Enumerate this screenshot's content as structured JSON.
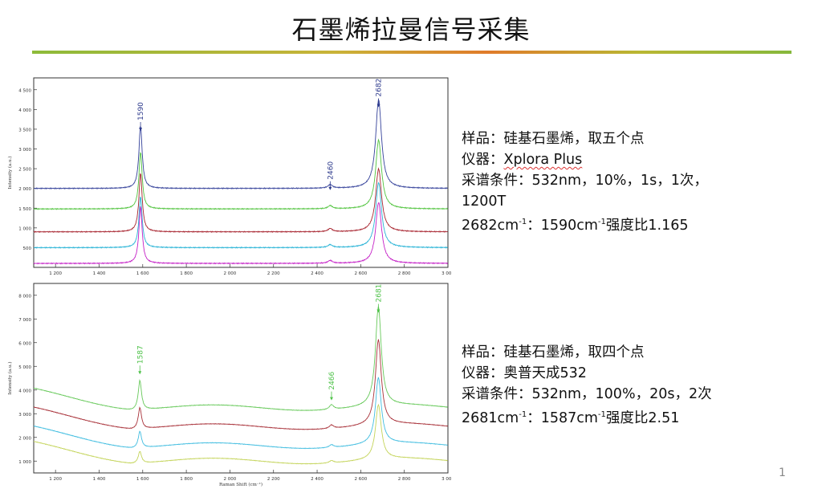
{
  "title": "石墨烯拉曼信号采集",
  "page_number": "1",
  "top_info": {
    "sample": "样品：硅基石墨烯，取五个点",
    "instrument_label": "仪器：",
    "instrument_name": "Xplora Plus",
    "conditions": "采谱条件：532nm，10%，1s，1次，",
    "conditions_2": "1200T",
    "ratio_a": "2682cm",
    "ratio_sup_a": "-1",
    "ratio_b": "：1590cm",
    "ratio_sup_b": "-1",
    "ratio_c": "强度比1.165"
  },
  "bottom_info": {
    "sample": "样品：硅基石墨烯，取四个点",
    "instrument": "仪器：奥普天成532",
    "conditions": "采谱条件：532nm，100%，20s，2次",
    "ratio_a": "2681cm",
    "ratio_sup_a": "-1",
    "ratio_b": "：1587cm",
    "ratio_sup_b": "-1",
    "ratio_c": "强度比2.51"
  },
  "chart_data": [
    {
      "type": "line",
      "title": "",
      "xlabel": "",
      "ylabel": "Intensity (a.u.)",
      "xlim": [
        1100,
        3000
      ],
      "ylim": [
        0,
        4800
      ],
      "x_ticks": [
        "1 200",
        "1 400",
        "1 600",
        "1 800",
        "2 000",
        "2 200",
        "2 400",
        "2 600",
        "2 800",
        "3 000"
      ],
      "y_ticks": [
        "4 500",
        "4 000",
        "3 500",
        "3 000",
        "2 500",
        "2 000",
        "1 500",
        "1 000",
        "500"
      ],
      "annotations": [
        {
          "text": "1590",
          "x": 1590,
          "y": 3600,
          "color": "#2d3a8c"
        },
        {
          "text": "2460",
          "x": 2460,
          "y": 2100,
          "color": "#2d3a8c"
        },
        {
          "text": "2682",
          "x": 2682,
          "y": 4200,
          "color": "#2d3a8c"
        }
      ],
      "series": [
        {
          "color": "#34419a",
          "baseline": 2000,
          "g_pos": 1590,
          "g_height": 1600,
          "d_pos": 2460,
          "d_height": 90,
          "p2d_pos": 2682,
          "p2d_height": 2250
        },
        {
          "color": "#52c43f",
          "baseline": 1480,
          "g_pos": 1590,
          "g_height": 1450,
          "d_pos": 2460,
          "d_height": 80,
          "p2d_pos": 2682,
          "p2d_height": 1750
        },
        {
          "color": "#a82530",
          "baseline": 900,
          "g_pos": 1590,
          "g_height": 1500,
          "d_pos": 2460,
          "d_height": 80,
          "p2d_pos": 2682,
          "p2d_height": 1600
        },
        {
          "color": "#27b3d6",
          "baseline": 500,
          "g_pos": 1590,
          "g_height": 1300,
          "d_pos": 2460,
          "d_height": 70,
          "p2d_pos": 2682,
          "p2d_height": 1650
        },
        {
          "color": "#c41fc6",
          "baseline": 100,
          "g_pos": 1590,
          "g_height": 1450,
          "d_pos": 2460,
          "d_height": 70,
          "p2d_pos": 2682,
          "p2d_height": 1550
        }
      ]
    },
    {
      "type": "line",
      "title": "",
      "xlabel": "Raman Shift (cm⁻¹)",
      "ylabel": "Intensity (a.u.)",
      "xlim": [
        1100,
        3000
      ],
      "ylim": [
        500,
        8500
      ],
      "x_ticks": [
        "1 200",
        "1 400",
        "1 600",
        "1 800",
        "2 000",
        "2 200",
        "2 400",
        "2 600",
        "2 800",
        "3 000"
      ],
      "y_ticks": [
        "8 000",
        "7 000",
        "6 000",
        "5 000",
        "4 000",
        "3 000",
        "2 000",
        "1 000"
      ],
      "annotations": [
        {
          "text": "1587",
          "x": 1587,
          "y": 4900,
          "color": "#4fc24a"
        },
        {
          "text": "2466",
          "x": 2466,
          "y": 3800,
          "color": "#4fc24a"
        },
        {
          "text": "2681",
          "x": 2681,
          "y": 7500,
          "color": "#4fc24a"
        }
      ],
      "series": [
        {
          "color": "#67c95a",
          "baseline": 3250,
          "g_pos": 1587,
          "g_height": 1250,
          "d_pos": 2466,
          "d_height": 200,
          "p2d_pos": 2681,
          "p2d_height": 4200
        },
        {
          "color": "#a83038",
          "baseline": 2450,
          "g_pos": 1587,
          "g_height": 900,
          "d_pos": 2466,
          "d_height": 150,
          "p2d_pos": 2681,
          "p2d_height": 3600
        },
        {
          "color": "#41bde0",
          "baseline": 1650,
          "g_pos": 1587,
          "g_height": 700,
          "d_pos": 2466,
          "d_height": 120,
          "p2d_pos": 2681,
          "p2d_height": 2800
        },
        {
          "color": "#c4d45a",
          "baseline": 1000,
          "g_pos": 1587,
          "g_height": 500,
          "d_pos": 2466,
          "d_height": 100,
          "p2d_pos": 2681,
          "p2d_height": 2300
        }
      ]
    }
  ]
}
